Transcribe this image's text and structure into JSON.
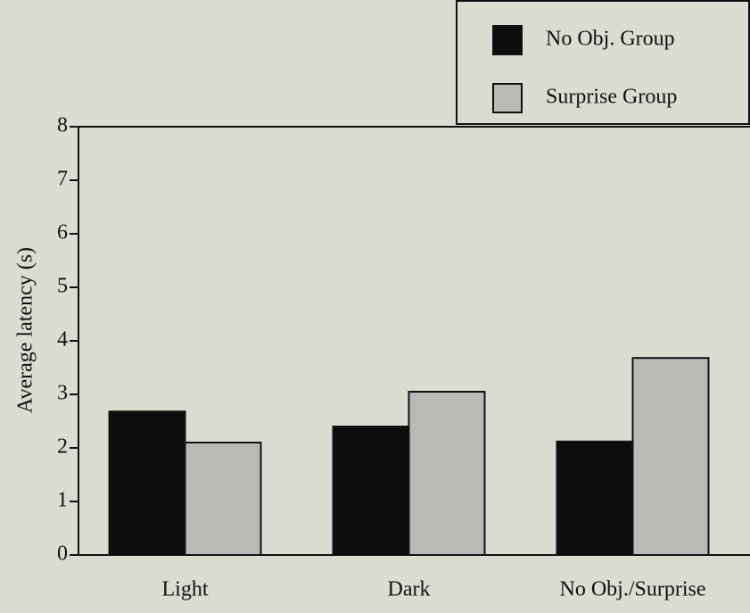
{
  "chart_data": {
    "type": "bar",
    "y_label": "Average latency (s)",
    "categories": [
      "Light",
      "Dark",
      "No Obj./Surprise"
    ],
    "series": [
      {
        "name": "No Obj. Group",
        "color": "#0d0d0d",
        "values": [
          2.68,
          2.4,
          2.12
        ]
      },
      {
        "name": "Surprise Group",
        "color": "#b9b9b5",
        "values": [
          2.1,
          3.05,
          3.68
        ]
      }
    ],
    "ylim": [
      0,
      8
    ],
    "yticks": [
      0,
      1,
      2,
      3,
      4,
      5,
      6,
      7,
      8
    ],
    "legend": "upper right"
  }
}
